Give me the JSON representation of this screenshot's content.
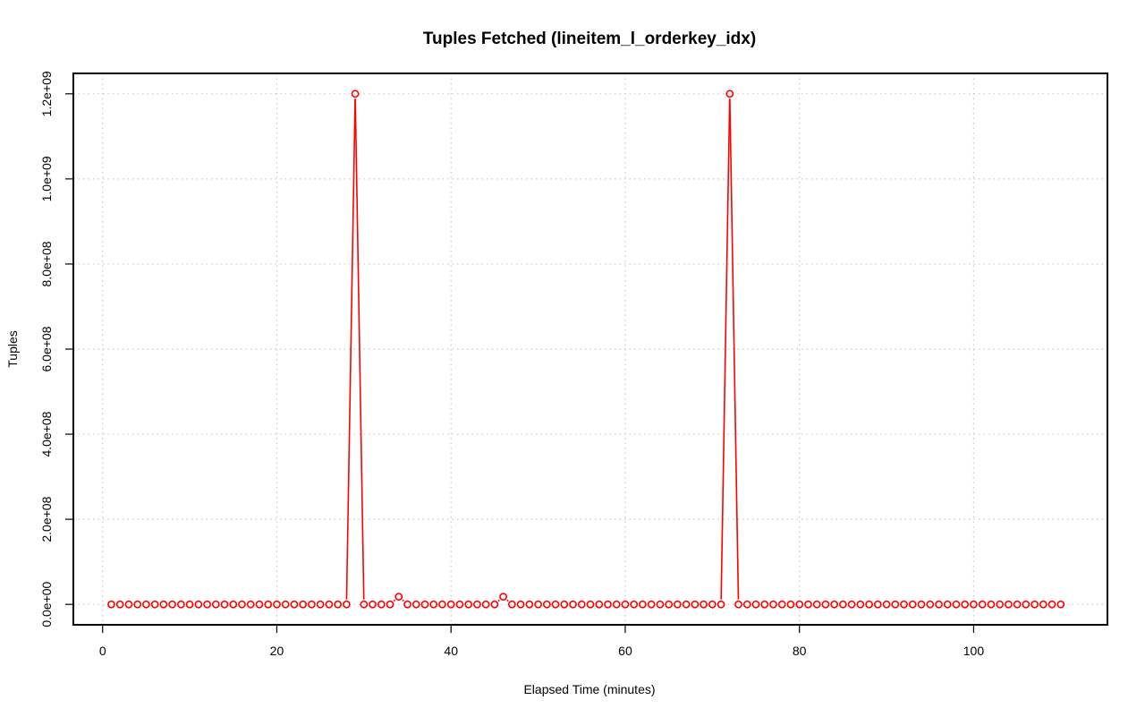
{
  "chart_data": {
    "type": "line",
    "title": "Tuples Fetched (lineitem_l_orderkey_idx)",
    "xlabel": "Elapsed Time (minutes)",
    "ylabel": "Tuples",
    "xlim": [
      -3.36,
      115.36
    ],
    "ylim": [
      -48000000,
      1248000000
    ],
    "x_ticks": [
      0,
      20,
      40,
      60,
      80,
      100
    ],
    "y_ticks": [
      0,
      200000000,
      400000000,
      600000000,
      800000000,
      1000000000,
      1200000000
    ],
    "x_tick_labels": [
      "0",
      "20",
      "40",
      "60",
      "80",
      "100"
    ],
    "y_tick_labels": [
      "0.0e+00",
      "2.0e+08",
      "4.0e+08",
      "6.0e+08",
      "8.0e+08",
      "1.0e+09",
      "1.2e+09"
    ],
    "grid": true,
    "style": "b",
    "color": "#ff0000",
    "series": [
      {
        "x": [
          1,
          2,
          3,
          4,
          5,
          6,
          7,
          8,
          9,
          10,
          11,
          12,
          13,
          14,
          15,
          16,
          17,
          18,
          19,
          20,
          21,
          22,
          23,
          24,
          25,
          26,
          27,
          28,
          29,
          30,
          31,
          32,
          33,
          34,
          35,
          36,
          37,
          38,
          39,
          40,
          41,
          42,
          43,
          44,
          45,
          46,
          47,
          48,
          49,
          50,
          51,
          52,
          53,
          54,
          55,
          56,
          57,
          58,
          59,
          60,
          61,
          62,
          63,
          64,
          65,
          66,
          67,
          68,
          69,
          70,
          71,
          72,
          73,
          74,
          75,
          76,
          77,
          78,
          79,
          80,
          81,
          82,
          83,
          84,
          85,
          86,
          87,
          88,
          89,
          90,
          91,
          92,
          93,
          94,
          95,
          96,
          97,
          98,
          99,
          100,
          101,
          102,
          103,
          104,
          105,
          106,
          107,
          108,
          109,
          110
        ],
        "y": [
          0,
          0,
          0,
          0,
          0,
          0,
          0,
          0,
          0,
          0,
          0,
          0,
          0,
          0,
          0,
          0,
          0,
          0,
          0,
          0,
          0,
          0,
          0,
          0,
          0,
          0,
          0,
          0,
          1200000000,
          0,
          0,
          0,
          0,
          18000000,
          0,
          0,
          0,
          0,
          0,
          0,
          0,
          0,
          0,
          0,
          0,
          18000000,
          0,
          0,
          0,
          0,
          0,
          0,
          0,
          0,
          0,
          0,
          0,
          0,
          0,
          0,
          0,
          0,
          0,
          0,
          0,
          0,
          0,
          0,
          0,
          0,
          0,
          1200000000,
          0,
          0,
          0,
          0,
          0,
          0,
          0,
          0,
          0,
          0,
          0,
          0,
          0,
          0,
          0,
          0,
          0,
          0,
          0,
          0,
          0,
          0,
          0,
          0,
          0,
          0,
          0,
          0,
          0,
          0,
          0,
          0,
          0,
          0,
          0,
          0,
          0,
          0
        ]
      }
    ]
  }
}
